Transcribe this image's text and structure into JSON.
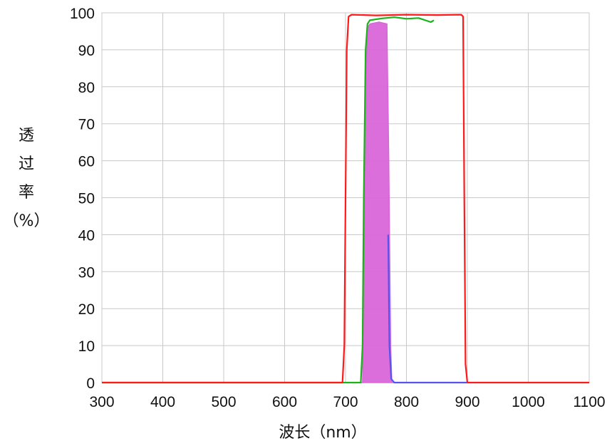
{
  "chart_data": {
    "type": "line",
    "title": "",
    "xlabel": "波长（nm）",
    "ylabel": [
      "透",
      "过",
      "率",
      "（%）"
    ],
    "xlim": [
      300,
      1100
    ],
    "ylim": [
      0,
      100
    ],
    "x_ticks": [
      300,
      400,
      500,
      600,
      700,
      800,
      900,
      1000,
      1100
    ],
    "y_ticks": [
      0,
      10,
      20,
      30,
      40,
      50,
      60,
      70,
      80,
      90,
      100
    ],
    "grid": true,
    "legend": "none",
    "series": [
      {
        "color": "#ff1a1a",
        "x": [
          300,
          695,
          698,
          700,
          702,
          705,
          710,
          750,
          800,
          850,
          890,
          893,
          895,
          897,
          900,
          1100
        ],
        "y": [
          0,
          0,
          10,
          50,
          90,
          99,
          99.5,
          99.3,
          99.5,
          99.4,
          99.5,
          99,
          50,
          5,
          0,
          0
        ]
      },
      {
        "color": "#18b418",
        "x": [
          300,
          725,
          728,
          730,
          733,
          736,
          740,
          760,
          780,
          800,
          820,
          840,
          845
        ],
        "y": [
          0,
          0,
          10,
          50,
          90,
          97,
          98,
          98.5,
          98.8,
          98.4,
          98.6,
          97.5,
          98
        ]
      },
      {
        "color": "#d966d9",
        "x": [
          300,
          728,
          730,
          733,
          736,
          740,
          755,
          768,
          771,
          774,
          776,
          1100
        ],
        "y": [
          0,
          0,
          20,
          80,
          96,
          97,
          97.5,
          97,
          60,
          10,
          0,
          0
        ],
        "fill": true
      },
      {
        "color": "#5555ee",
        "x": [
          770,
          772,
          775,
          780,
          900
        ],
        "y": [
          40,
          10,
          1,
          0,
          0
        ]
      }
    ]
  }
}
